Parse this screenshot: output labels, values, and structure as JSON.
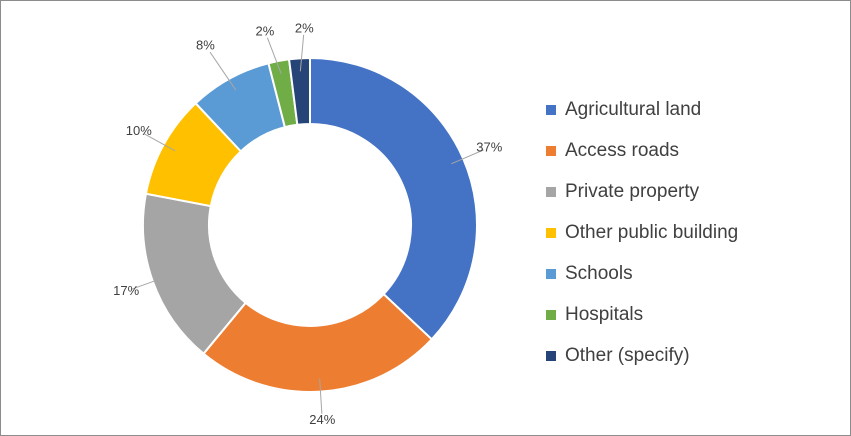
{
  "chart_data": {
    "type": "pie",
    "donut": true,
    "legend_position": "right",
    "slices": [
      {
        "label": "Agricultural land",
        "value": 37,
        "value_label": "37%",
        "color": "#4472C4"
      },
      {
        "label": "Access roads",
        "value": 24,
        "value_label": "24%",
        "color": "#ED7D31"
      },
      {
        "label": "Private property",
        "value": 17,
        "value_label": "17%",
        "color": "#A5A5A5"
      },
      {
        "label": "Other public building",
        "value": 10,
        "value_label": "10%",
        "color": "#FFC000"
      },
      {
        "label": "Schools",
        "value": 8,
        "value_label": "8%",
        "color": "#5B9BD5"
      },
      {
        "label": "Hospitals",
        "value": 2,
        "value_label": "2%",
        "color": "#70AD47"
      },
      {
        "label": "Other (specify)",
        "value": 2,
        "value_label": "2%",
        "color": "#264478"
      }
    ]
  }
}
